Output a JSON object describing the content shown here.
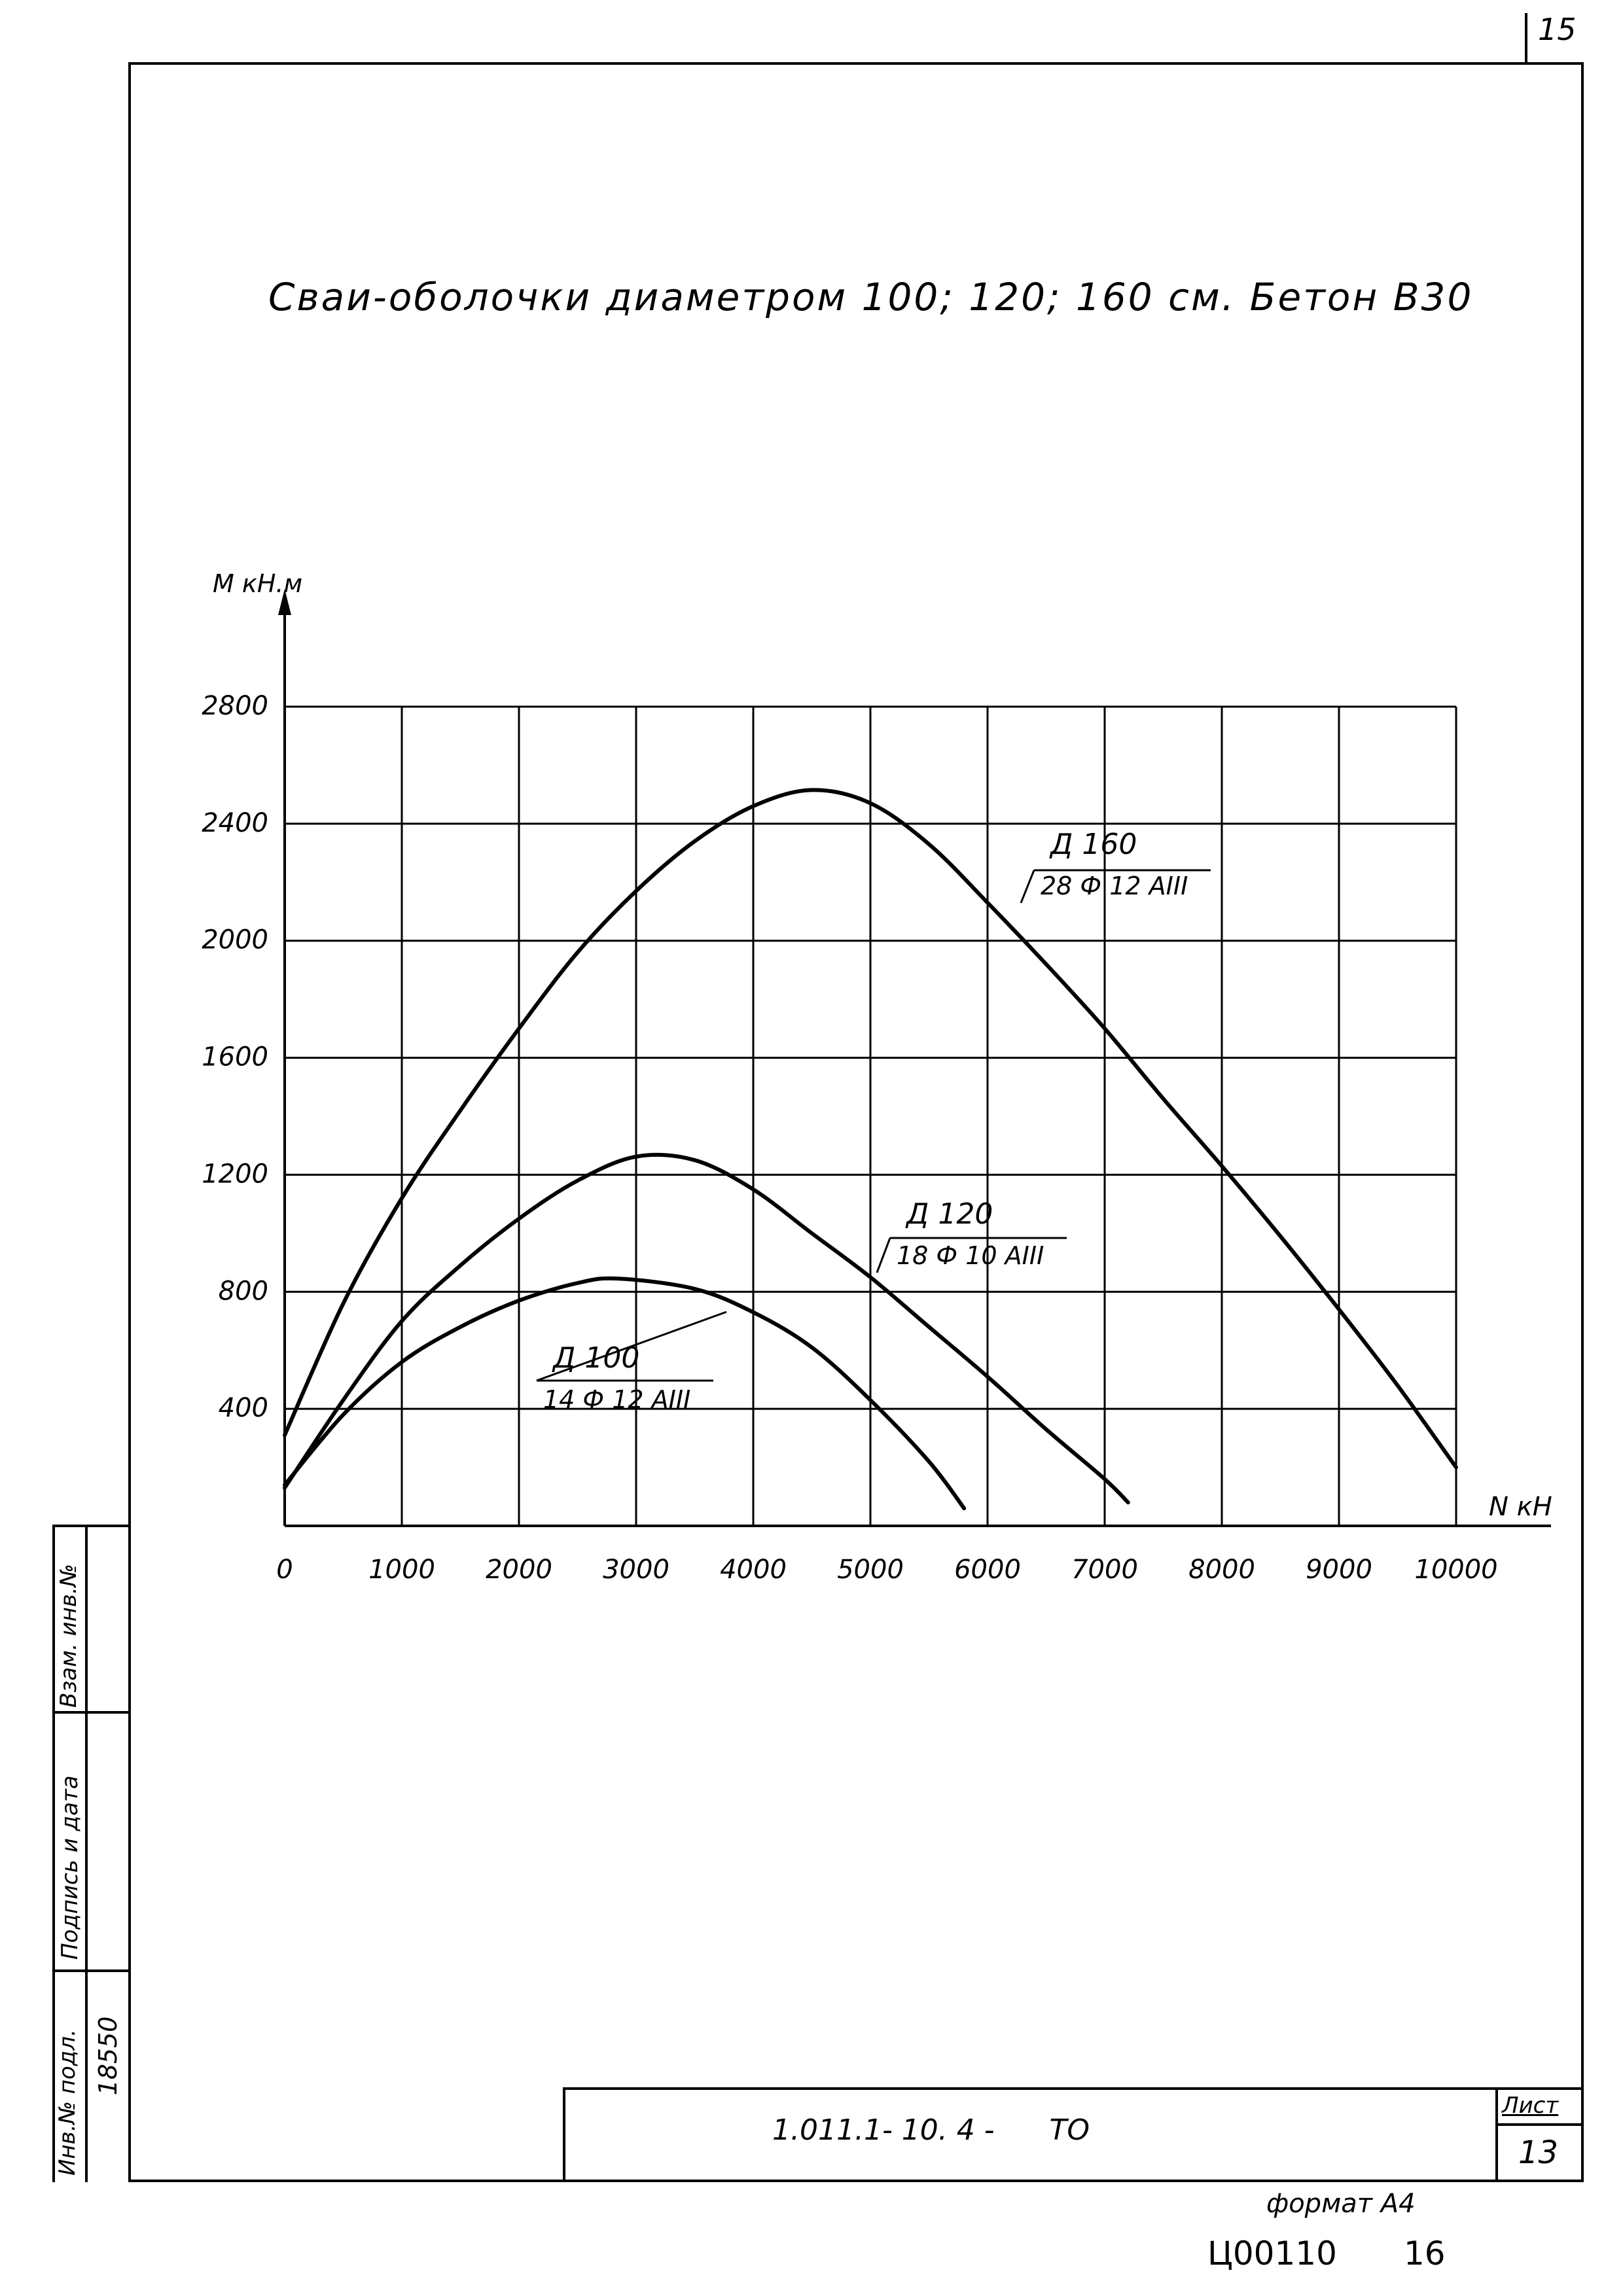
{
  "page": {
    "sheet_top_number": "15",
    "sheet_label": "Лист",
    "sheet_number": "13",
    "document_code": "1.011.1- 10. 4 -      ТО",
    "format_label": "формат А4",
    "archive_code": "Ц00110",
    "archive_sub": "16",
    "side_stamp": {
      "inv_orig_label": "Инв.№ подл.",
      "inv_orig_value": "18550",
      "sign_date_label": "Подпись и дата",
      "replace_inv_label": "Взам. инв.№"
    }
  },
  "chart_data": {
    "type": "line",
    "title": "Сваи-оболочки диаметром 100; 120; 160 см. Бетон В30",
    "xlabel": "N кН",
    "ylabel": "М кН.м",
    "xlim": [
      0,
      10000
    ],
    "ylim": [
      0,
      2800
    ],
    "grid": true,
    "x_ticks": [
      0,
      1000,
      2000,
      3000,
      4000,
      5000,
      6000,
      7000,
      8000,
      9000,
      10000
    ],
    "x_tick_labels": [
      "0",
      "1000",
      "2000",
      "3000",
      "4000",
      "5000",
      "6000",
      "7000",
      "8000",
      "9000",
      "10000"
    ],
    "y_ticks": [
      400,
      800,
      1200,
      1600,
      2000,
      2400,
      2800
    ],
    "y_tick_labels": [
      "400",
      "800",
      "1200",
      "1600",
      "2000",
      "2400",
      "2800"
    ],
    "series": [
      {
        "name": "Д 160",
        "reinforcement": "28 Ф 12 АIII",
        "x": [
          0,
          500,
          1000,
          1500,
          2000,
          2500,
          3000,
          3500,
          4000,
          4500,
          5000,
          5500,
          6000,
          6500,
          7000,
          7500,
          8000,
          8500,
          9000,
          9500,
          10000
        ],
        "y": [
          310,
          760,
          1120,
          1420,
          1700,
          1960,
          2170,
          2340,
          2460,
          2515,
          2470,
          2330,
          2130,
          1920,
          1700,
          1460,
          1230,
          990,
          740,
          480,
          200
        ]
      },
      {
        "name": "Д 120",
        "reinforcement": "18 Ф 10 АIII",
        "x": [
          0,
          500,
          1000,
          1500,
          2000,
          2500,
          3000,
          3500,
          4000,
          4500,
          5000,
          5500,
          6000,
          6500,
          7000,
          7200
        ],
        "y": [
          130,
          430,
          700,
          890,
          1050,
          1180,
          1262,
          1250,
          1150,
          1000,
          850,
          680,
          510,
          330,
          160,
          80
        ]
      },
      {
        "name": "Д 100",
        "reinforcement": "14 Ф 12 АIII",
        "x": [
          0,
          500,
          1000,
          1500,
          2000,
          2500,
          2850,
          3500,
          4000,
          4500,
          5000,
          5500,
          5800
        ],
        "y": [
          140,
          380,
          560,
          680,
          770,
          830,
          845,
          810,
          730,
          610,
          430,
          220,
          60
        ]
      }
    ]
  }
}
